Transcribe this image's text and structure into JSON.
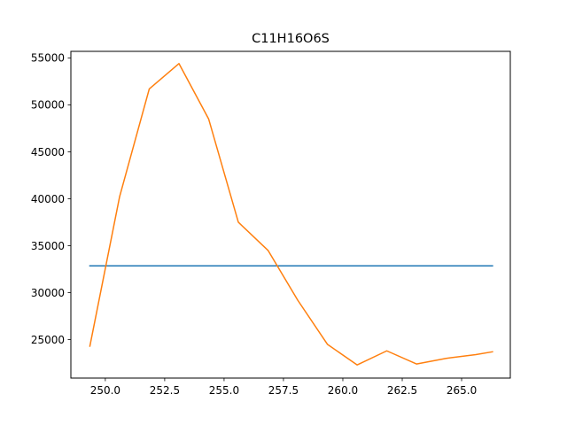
{
  "chart_data": {
    "type": "line",
    "title": "C11H16O6S",
    "xlabel": "",
    "ylabel": "",
    "xlim": [
      248.55,
      267.05
    ],
    "ylim": [
      20900,
      55700
    ],
    "x_ticks": [
      250.0,
      252.5,
      255.0,
      257.5,
      260.0,
      262.5,
      265.0
    ],
    "x_tick_labels": [
      "250.0",
      "252.5",
      "255.0",
      "257.5",
      "260.0",
      "262.5",
      "265.0"
    ],
    "y_ticks": [
      25000,
      30000,
      35000,
      40000,
      45000,
      50000,
      55000
    ],
    "y_tick_labels": [
      "25000",
      "30000",
      "35000",
      "40000",
      "45000",
      "50000",
      "55000"
    ],
    "grid": false,
    "legend": "none",
    "series": [
      {
        "color": "#1f77b4",
        "x": [
          249.35,
          266.3
        ],
        "y": [
          32850,
          32850
        ]
      },
      {
        "color": "#ff7f0e",
        "x": [
          249.35,
          250.6,
          251.85,
          253.1,
          254.35,
          255.6,
          256.85,
          258.1,
          259.35,
          260.6,
          261.85,
          263.1,
          264.35,
          265.6,
          266.3
        ],
        "y": [
          24300,
          40200,
          51700,
          54400,
          48500,
          37500,
          34500,
          29200,
          24500,
          22300,
          23800,
          22400,
          23000,
          23400,
          23700
        ]
      }
    ]
  }
}
